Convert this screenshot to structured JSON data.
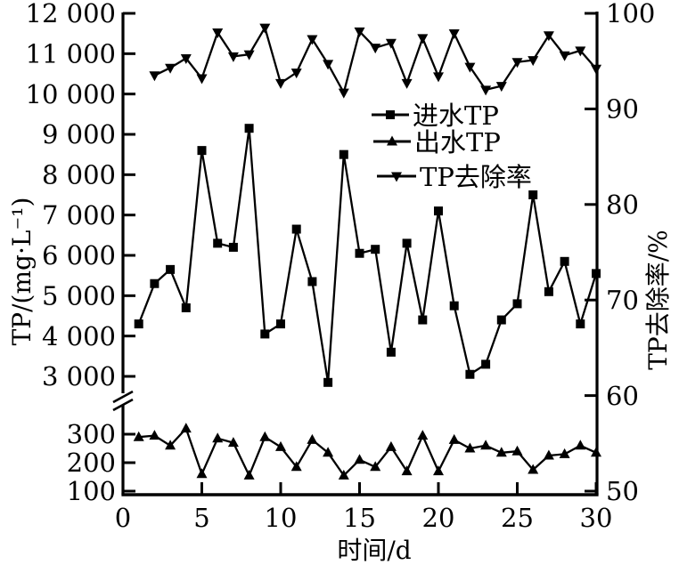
{
  "figure": {
    "background": "#ffffff",
    "line_color": "#000000"
  },
  "chart_data": {
    "type": "line",
    "title": "",
    "xlabel": "时间/d",
    "ylabel_left": "TP/(mg·L⁻¹)",
    "ylabel_right": "TP去除率/%",
    "grid": false,
    "legend_position": "inside-top-center",
    "x_range": [
      0,
      30
    ],
    "x_ticks": [
      {
        "v": 0,
        "label": "0"
      },
      {
        "v": 5,
        "label": "5"
      },
      {
        "v": 10,
        "label": "10"
      },
      {
        "v": 15,
        "label": "15"
      },
      {
        "v": 20,
        "label": "20"
      },
      {
        "v": 25,
        "label": "25"
      },
      {
        "v": 30,
        "label": "30"
      }
    ],
    "left_axis": {
      "has_break": true,
      "upper_range": [
        3000,
        12000
      ],
      "lower_range": [
        100,
        300
      ],
      "upper_ticks": [
        {
          "v": 12000,
          "label": "12 000"
        },
        {
          "v": 11000,
          "label": "11 000"
        },
        {
          "v": 10000,
          "label": "10 000"
        },
        {
          "v": 9000,
          "label": "9 000"
        },
        {
          "v": 8000,
          "label": "8 000"
        },
        {
          "v": 7000,
          "label": "7 000"
        },
        {
          "v": 6000,
          "label": "6 000"
        },
        {
          "v": 5000,
          "label": "5 000"
        },
        {
          "v": 4000,
          "label": "4 000"
        },
        {
          "v": 3000,
          "label": "3 000"
        }
      ],
      "lower_ticks": [
        {
          "v": 300,
          "label": "300"
        },
        {
          "v": 200,
          "label": "200"
        },
        {
          "v": 100,
          "label": "100"
        }
      ]
    },
    "right_axis": {
      "range": [
        50,
        100
      ],
      "ticks": [
        {
          "v": 100,
          "label": "100"
        },
        {
          "v": 90,
          "label": "90"
        },
        {
          "v": 80,
          "label": "80"
        },
        {
          "v": 70,
          "label": "70"
        },
        {
          "v": 60,
          "label": "60"
        },
        {
          "v": 50,
          "label": "50"
        }
      ]
    },
    "series": [
      {
        "name": "进水TP",
        "marker": "square",
        "scale": "left-upper",
        "unit": "mg·L⁻¹",
        "x": [
          1,
          2,
          3,
          4,
          5,
          6,
          7,
          8,
          9,
          10,
          11,
          12,
          13,
          14,
          15,
          16,
          17,
          18,
          19,
          20,
          21,
          22,
          23,
          24,
          25,
          26,
          27,
          28,
          29,
          30
        ],
        "values": [
          4300,
          5300,
          5650,
          4700,
          8600,
          6300,
          6200,
          9150,
          4050,
          4300,
          6650,
          5350,
          2850,
          8500,
          6050,
          6150,
          3600,
          6300,
          4400,
          7100,
          4750,
          3050,
          3300,
          4400,
          4800,
          7500,
          5100,
          5850,
          4300,
          5550
        ]
      },
      {
        "name": "出水TP",
        "marker": "triangle-up",
        "scale": "left-lower",
        "unit": "mg·L⁻¹",
        "x": [
          1,
          2,
          3,
          4,
          5,
          6,
          7,
          8,
          9,
          10,
          11,
          12,
          13,
          14,
          15,
          16,
          17,
          18,
          19,
          20,
          21,
          22,
          23,
          24,
          25,
          26,
          27,
          28,
          29,
          30
        ],
        "values": [
          290,
          295,
          260,
          320,
          160,
          285,
          270,
          155,
          290,
          255,
          185,
          280,
          235,
          155,
          210,
          185,
          255,
          170,
          295,
          170,
          280,
          250,
          260,
          235,
          240,
          175,
          225,
          230,
          260,
          235
        ]
      },
      {
        "name": "TP去除率",
        "marker": "triangle-down",
        "scale": "right",
        "unit": "%",
        "x": [
          2,
          3,
          4,
          5,
          6,
          7,
          8,
          9,
          10,
          11,
          12,
          13,
          14,
          15,
          16,
          17,
          18,
          19,
          20,
          21,
          22,
          23,
          24,
          25,
          26,
          27,
          28,
          29,
          30
        ],
        "values": [
          93.5,
          94.3,
          95.3,
          93.2,
          98.0,
          95.5,
          95.7,
          98.5,
          92.7,
          93.8,
          97.3,
          94.7,
          91.7,
          98.1,
          96.4,
          96.9,
          92.7,
          97.4,
          93.4,
          97.9,
          94.4,
          92.0,
          92.4,
          94.9,
          95.1,
          97.7,
          95.6,
          96.1,
          94.2
        ]
      }
    ]
  }
}
